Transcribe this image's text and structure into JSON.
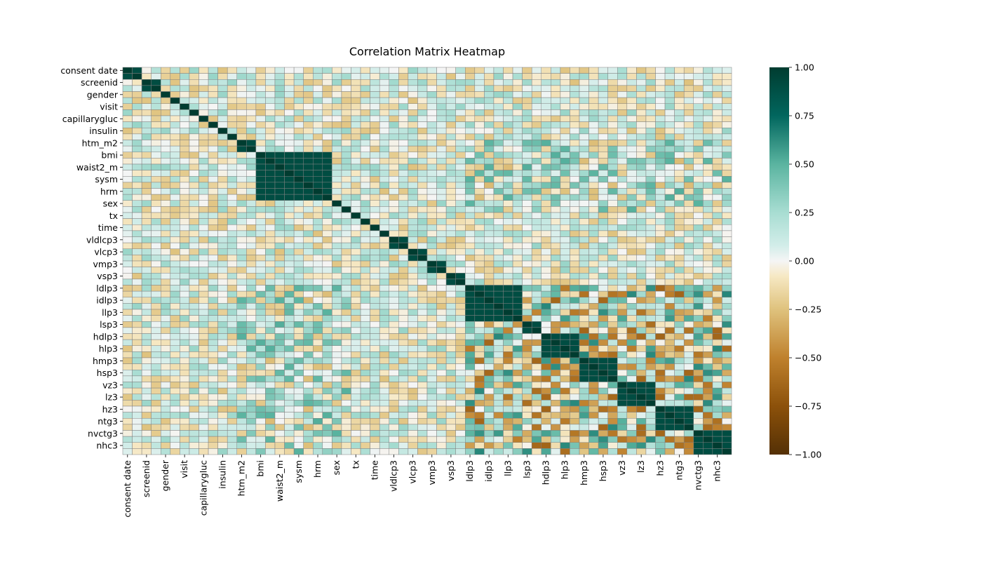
{
  "chart_data": {
    "type": "heatmap",
    "title": "Correlation Matrix Heatmap",
    "xlabel": "",
    "ylabel": "",
    "colormap": "BrBG",
    "vmin": -1.0,
    "vmax": 1.0,
    "colorbar_ticks": [
      "1.00",
      "0.75",
      "0.50",
      "0.25",
      "0.00",
      "−0.25",
      "−0.50",
      "−0.75",
      "−1.00"
    ],
    "colorbar_tick_values": [
      1.0,
      0.75,
      0.5,
      0.25,
      0.0,
      -0.25,
      -0.5,
      -0.75,
      -1.0
    ],
    "tick_labels": [
      "consent date ",
      "screenid",
      "gender",
      "visit",
      "capillarygluc",
      "insulin",
      "htm_m2",
      "bmi",
      "waist2_m",
      "sysm",
      "hrm",
      "sex",
      "tx",
      "time",
      "vldlcp3",
      "vlcp3",
      "vmp3",
      "vsp3",
      "ldlp3",
      "idlp3",
      "llp3",
      "lsp3",
      "hdlp3",
      "hlp3",
      "hmp3",
      "hsp3",
      "vz3",
      "lz3",
      "hz3",
      "ntg3",
      "nvctg3",
      "nhc3"
    ],
    "n_variables": 64,
    "grid_color": "#808080",
    "colorbar_position": "right"
  }
}
